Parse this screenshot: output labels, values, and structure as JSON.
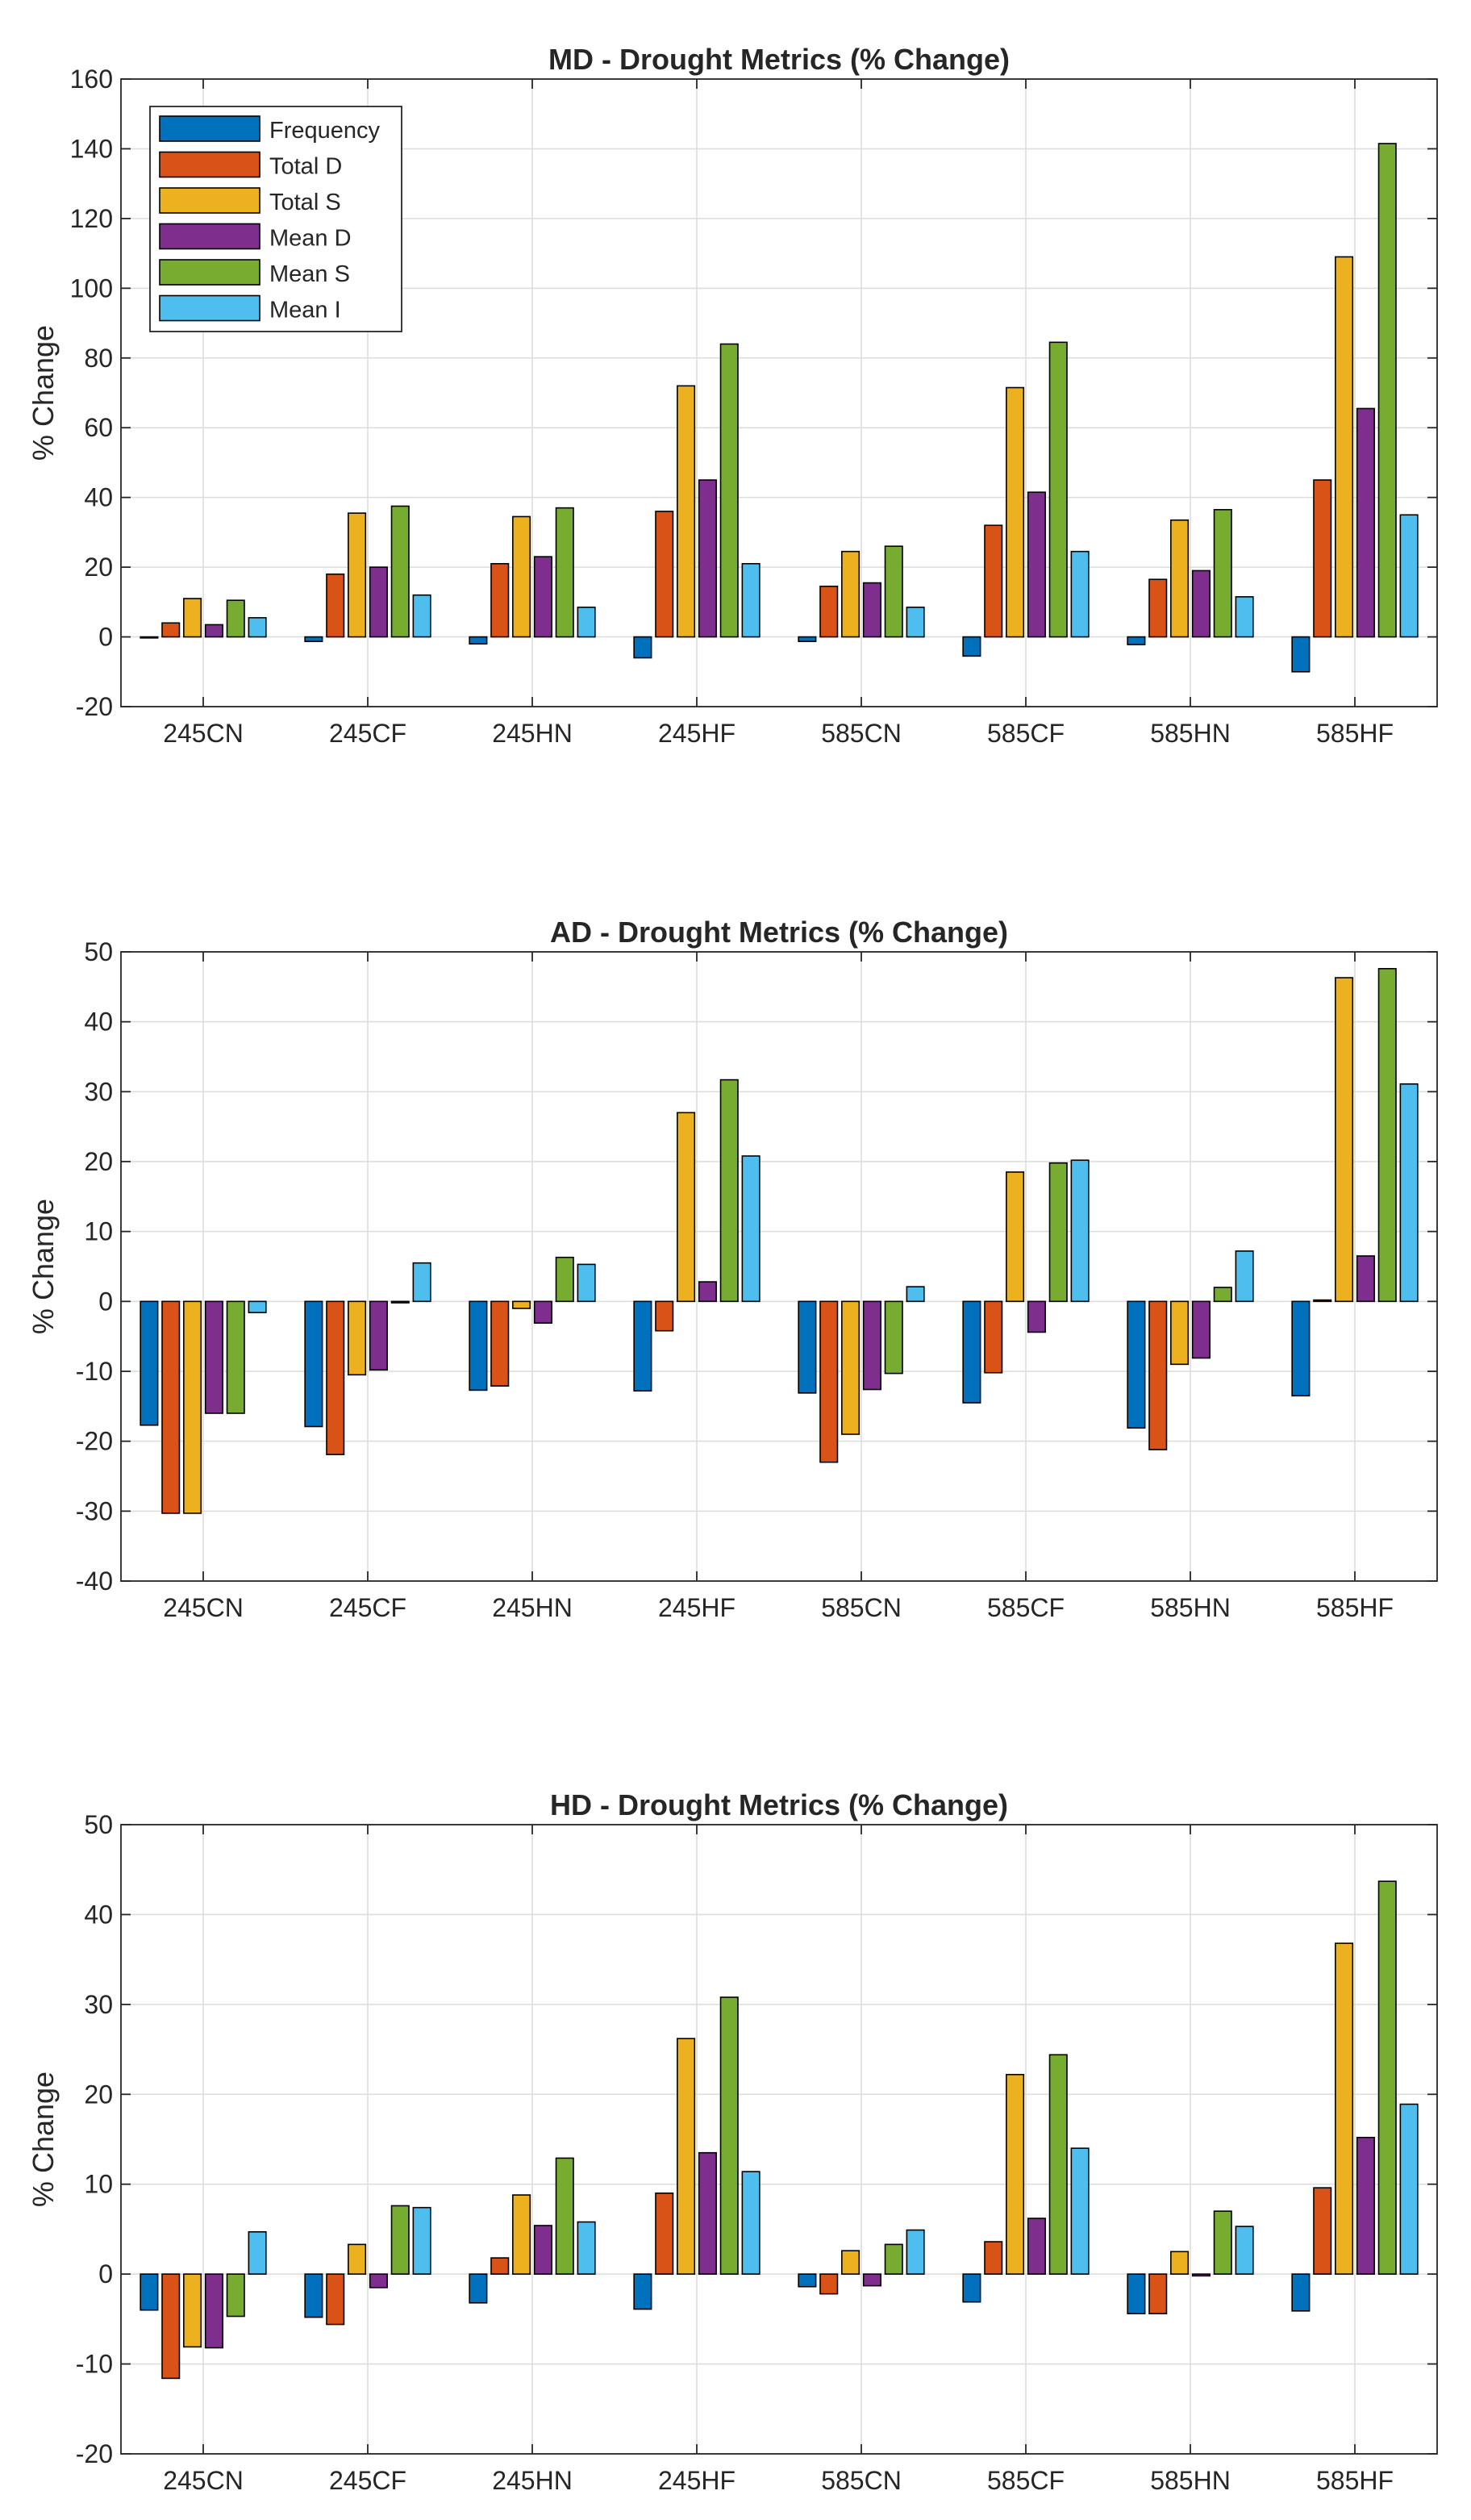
{
  "legend": {
    "entries": [
      "Frequency",
      "Total D",
      "Total S",
      "Mean D",
      "Mean S",
      "Mean I"
    ],
    "placement": "top-left of first panel"
  },
  "colors": {
    "Frequency": "#0072BD",
    "Total D": "#D95319",
    "Total S": "#EDB120",
    "Mean D": "#7E2F8E",
    "Mean S": "#77AC30",
    "Mean I": "#4DBEEE",
    "grid": "#dcdcdc",
    "axis": "#262626"
  },
  "chart_data": [
    {
      "type": "bar",
      "title": "MD - Drought Metrics (% Change)",
      "xlabel": "",
      "ylabel": "% Change",
      "ylim": [
        -20,
        160
      ],
      "yticks": [
        -20,
        0,
        20,
        40,
        60,
        80,
        100,
        120,
        140,
        160
      ],
      "grid": true,
      "categories": [
        "245CN",
        "245CF",
        "245HN",
        "245HF",
        "585CN",
        "585CF",
        "585HN",
        "585HF"
      ],
      "series": [
        {
          "name": "Frequency",
          "values": [
            -0.3,
            -1.3,
            -2,
            -6,
            -1.3,
            -5.5,
            -2.2,
            -10
          ]
        },
        {
          "name": "Total D",
          "values": [
            4,
            18,
            21,
            36,
            14.5,
            32,
            16.5,
            45
          ]
        },
        {
          "name": "Total S",
          "values": [
            11,
            35.5,
            34.5,
            72,
            24.5,
            71.5,
            33.5,
            109
          ]
        },
        {
          "name": "Mean D",
          "values": [
            3.5,
            20,
            23,
            45,
            15.5,
            41.5,
            19,
            65.5
          ]
        },
        {
          "name": "Mean S",
          "values": [
            10.5,
            37.5,
            37,
            84,
            26,
            84.5,
            36.5,
            141.5
          ]
        },
        {
          "name": "Mean I",
          "values": [
            5.5,
            12,
            8.5,
            21,
            8.5,
            24.5,
            11.5,
            35
          ]
        }
      ]
    },
    {
      "type": "bar",
      "title": "AD - Drought Metrics (% Change)",
      "xlabel": "",
      "ylabel": "% Change",
      "ylim": [
        -40,
        50
      ],
      "yticks": [
        -40,
        -30,
        -20,
        -10,
        0,
        10,
        20,
        30,
        40,
        50
      ],
      "grid": true,
      "categories": [
        "245CN",
        "245CF",
        "245HN",
        "245HF",
        "585CN",
        "585CF",
        "585HN",
        "585HF"
      ],
      "series": [
        {
          "name": "Frequency",
          "values": [
            -17.7,
            -17.9,
            -12.7,
            -12.8,
            -13.1,
            -14.5,
            -18.1,
            -13.5
          ]
        },
        {
          "name": "Total D",
          "values": [
            -30.3,
            -21.9,
            -12.1,
            -4.2,
            -23,
            -10.2,
            -21.2,
            0.2
          ]
        },
        {
          "name": "Total S",
          "values": [
            -30.3,
            -10.5,
            -1,
            27,
            -19,
            18.5,
            -9,
            46.3
          ]
        },
        {
          "name": "Mean D",
          "values": [
            -16,
            -9.8,
            -3.1,
            2.8,
            -12.6,
            -4.4,
            -8.1,
            6.5
          ]
        },
        {
          "name": "Mean S",
          "values": [
            -16,
            -0.2,
            6.3,
            31.7,
            -10.3,
            19.8,
            2,
            47.6
          ]
        },
        {
          "name": "Mean I",
          "values": [
            -1.6,
            5.5,
            5.3,
            20.8,
            2.1,
            20.2,
            7.2,
            31.1
          ]
        }
      ]
    },
    {
      "type": "bar",
      "title": "HD - Drought Metrics (% Change)",
      "xlabel": "",
      "ylabel": "% Change",
      "ylim": [
        -20,
        50
      ],
      "yticks": [
        -20,
        -10,
        0,
        10,
        20,
        30,
        40,
        50
      ],
      "grid": true,
      "categories": [
        "245CN",
        "245CF",
        "245HN",
        "245HF",
        "585CN",
        "585CF",
        "585HN",
        "585HF"
      ],
      "series": [
        {
          "name": "Frequency",
          "values": [
            -4,
            -4.8,
            -3.2,
            -3.9,
            -1.4,
            -3.1,
            -4.4,
            -4.1
          ]
        },
        {
          "name": "Total D",
          "values": [
            -11.6,
            -5.6,
            1.8,
            9,
            -2.2,
            3.6,
            -4.4,
            9.6
          ]
        },
        {
          "name": "Total S",
          "values": [
            -8.1,
            3.3,
            8.8,
            26.2,
            2.6,
            22.2,
            2.5,
            36.8
          ]
        },
        {
          "name": "Mean D",
          "values": [
            -8.2,
            -1.5,
            5.4,
            13.5,
            -1.3,
            6.2,
            -0.2,
            15.2
          ]
        },
        {
          "name": "Mean S",
          "values": [
            -4.7,
            7.6,
            12.9,
            30.8,
            3.3,
            24.4,
            7,
            43.7
          ]
        },
        {
          "name": "Mean I",
          "values": [
            4.7,
            7.4,
            5.8,
            11.4,
            4.9,
            14,
            5.3,
            18.9
          ]
        }
      ]
    }
  ]
}
